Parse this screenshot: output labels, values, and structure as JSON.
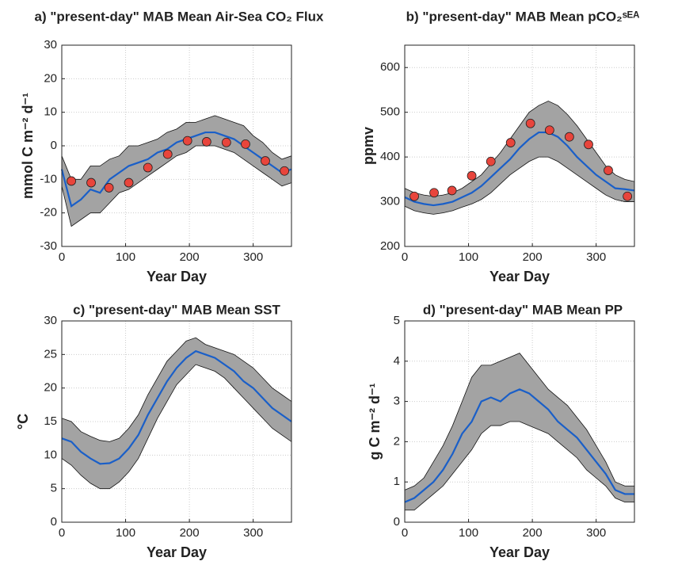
{
  "chart_data": [
    {
      "type": "line",
      "title": "a) \"present-day\" MAB Mean Air-Sea CO₂ Flux",
      "xlabel": "Year Day",
      "ylabel": "mmol C m⁻² d⁻¹",
      "xlim": [
        0,
        360
      ],
      "xticks": [
        0,
        100,
        200,
        300
      ],
      "ylim": [
        -30,
        30
      ],
      "yticks": [
        -30,
        -20,
        -10,
        0,
        10,
        20,
        30
      ],
      "grid": true,
      "x": [
        0,
        15,
        30,
        45,
        60,
        75,
        90,
        105,
        120,
        135,
        150,
        165,
        180,
        195,
        210,
        225,
        240,
        255,
        270,
        285,
        300,
        315,
        330,
        345,
        360
      ],
      "line_color": "#1a5fc8",
      "band_color": "#a3a3a3",
      "values": [
        -7,
        -18,
        -16,
        -13,
        -14,
        -10,
        -8,
        -6,
        -5,
        -4,
        -2,
        -1,
        1,
        2,
        3,
        4,
        4,
        3,
        2,
        0,
        -2,
        -4,
        -6,
        -8,
        -7
      ],
      "upper": [
        -3,
        -10,
        -10,
        -6,
        -6,
        -4,
        -3,
        0,
        0,
        1,
        2,
        4,
        5,
        7,
        7,
        8,
        9,
        8,
        7,
        6,
        3,
        1,
        -2,
        -4,
        -3
      ],
      "lower": [
        -12,
        -24,
        -22,
        -20,
        -20,
        -17,
        -14,
        -13,
        -11,
        -9,
        -7,
        -5,
        -3,
        -2,
        0,
        0,
        0,
        -1,
        -2,
        -4,
        -6,
        -8,
        -10,
        -12,
        -11
      ],
      "obs_color": "#e8453c",
      "obs_x": [
        15,
        46,
        74,
        105,
        135,
        166,
        197,
        227,
        258,
        288,
        319,
        349
      ],
      "obs_values": [
        -10.5,
        -11,
        -12.5,
        -11,
        -6.5,
        -2.5,
        1.5,
        1.2,
        1,
        0.5,
        -4.5,
        -7.5
      ]
    },
    {
      "type": "line",
      "title": "b) \"present-day\" MAB Mean pCO₂ˢᴱᴬ",
      "xlabel": "Year Day",
      "ylabel": "ppmv",
      "xlim": [
        0,
        360
      ],
      "xticks": [
        0,
        100,
        200,
        300
      ],
      "ylim": [
        200,
        650
      ],
      "yticks": [
        200,
        300,
        400,
        500,
        600
      ],
      "grid": true,
      "x": [
        0,
        15,
        30,
        45,
        60,
        75,
        90,
        105,
        120,
        135,
        150,
        165,
        180,
        195,
        210,
        225,
        240,
        255,
        270,
        285,
        300,
        315,
        330,
        345,
        360
      ],
      "line_color": "#1a5fc8",
      "band_color": "#a3a3a3",
      "values": [
        310,
        300,
        295,
        292,
        295,
        300,
        310,
        320,
        335,
        355,
        375,
        395,
        420,
        440,
        455,
        455,
        445,
        425,
        400,
        380,
        360,
        345,
        330,
        328,
        325
      ],
      "upper": [
        330,
        320,
        315,
        312,
        315,
        320,
        330,
        345,
        360,
        385,
        410,
        440,
        470,
        500,
        515,
        525,
        515,
        495,
        470,
        440,
        410,
        380,
        360,
        350,
        345
      ],
      "lower": [
        290,
        280,
        275,
        272,
        275,
        280,
        288,
        295,
        305,
        320,
        340,
        360,
        375,
        390,
        400,
        400,
        390,
        375,
        360,
        345,
        330,
        315,
        305,
        300,
        300
      ],
      "obs_color": "#e8453c",
      "obs_x": [
        15,
        46,
        74,
        105,
        135,
        166,
        197,
        227,
        258,
        288,
        319,
        349
      ],
      "obs_values": [
        312,
        320,
        325,
        358,
        390,
        432,
        475,
        460,
        445,
        428,
        370,
        312
      ]
    },
    {
      "type": "line",
      "title": "c) \"present-day\" MAB Mean SST",
      "xlabel": "Year Day",
      "ylabel": "°C",
      "xlim": [
        0,
        360
      ],
      "xticks": [
        0,
        100,
        200,
        300
      ],
      "ylim": [
        0,
        30
      ],
      "yticks": [
        0,
        5,
        10,
        15,
        20,
        25,
        30
      ],
      "grid": true,
      "x": [
        0,
        15,
        30,
        45,
        60,
        75,
        90,
        105,
        120,
        135,
        150,
        165,
        180,
        195,
        210,
        225,
        240,
        255,
        270,
        285,
        300,
        315,
        330,
        345,
        360
      ],
      "line_color": "#1a5fc8",
      "band_color": "#a3a3a3",
      "values": [
        12.5,
        12,
        10.5,
        9.5,
        8.7,
        8.8,
        9.5,
        11,
        13,
        16,
        18.5,
        21,
        23,
        24.5,
        25.5,
        25,
        24.5,
        23.5,
        22.5,
        21,
        20,
        18.5,
        17,
        16,
        15
      ],
      "upper": [
        15.5,
        15,
        13.5,
        12.8,
        12.2,
        12,
        12.5,
        14,
        16,
        19,
        21.5,
        24,
        25.5,
        27,
        27.5,
        26.5,
        26,
        25.5,
        25,
        24,
        23,
        21.5,
        20,
        19,
        18
      ],
      "lower": [
        9.5,
        8.5,
        7,
        5.8,
        5,
        5,
        6,
        7.5,
        9.5,
        12.5,
        15.5,
        18,
        20.5,
        22,
        23.5,
        23,
        22.5,
        21.5,
        20,
        18.5,
        17,
        15.5,
        14,
        13,
        12
      ]
    },
    {
      "type": "line",
      "title": "d) \"present-day\" MAB Mean PP",
      "xlabel": "Year Day",
      "ylabel": "g C m⁻² d⁻¹",
      "xlim": [
        0,
        360
      ],
      "xticks": [
        0,
        100,
        200,
        300
      ],
      "ylim": [
        0,
        5
      ],
      "yticks": [
        0,
        1,
        2,
        3,
        4,
        5
      ],
      "grid": true,
      "x": [
        0,
        15,
        30,
        45,
        60,
        75,
        90,
        105,
        120,
        135,
        150,
        165,
        180,
        195,
        210,
        225,
        240,
        255,
        270,
        285,
        300,
        315,
        330,
        345,
        360
      ],
      "line_color": "#1a5fc8",
      "band_color": "#a3a3a3",
      "values": [
        0.5,
        0.6,
        0.8,
        1,
        1.3,
        1.7,
        2.2,
        2.5,
        3,
        3.1,
        3,
        3.2,
        3.3,
        3.2,
        3,
        2.8,
        2.5,
        2.3,
        2.1,
        1.8,
        1.5,
        1.2,
        0.8,
        0.7,
        0.7
      ],
      "upper": [
        0.8,
        0.9,
        1.1,
        1.5,
        1.9,
        2.4,
        3,
        3.6,
        3.9,
        3.9,
        4,
        4.1,
        4.2,
        3.9,
        3.6,
        3.3,
        3.1,
        2.9,
        2.6,
        2.3,
        1.9,
        1.5,
        1,
        0.9,
        0.9
      ],
      "lower": [
        0.3,
        0.3,
        0.5,
        0.7,
        0.9,
        1.2,
        1.5,
        1.8,
        2.2,
        2.4,
        2.4,
        2.5,
        2.5,
        2.4,
        2.3,
        2.2,
        2,
        1.8,
        1.6,
        1.3,
        1.1,
        0.9,
        0.6,
        0.5,
        0.5
      ]
    }
  ]
}
